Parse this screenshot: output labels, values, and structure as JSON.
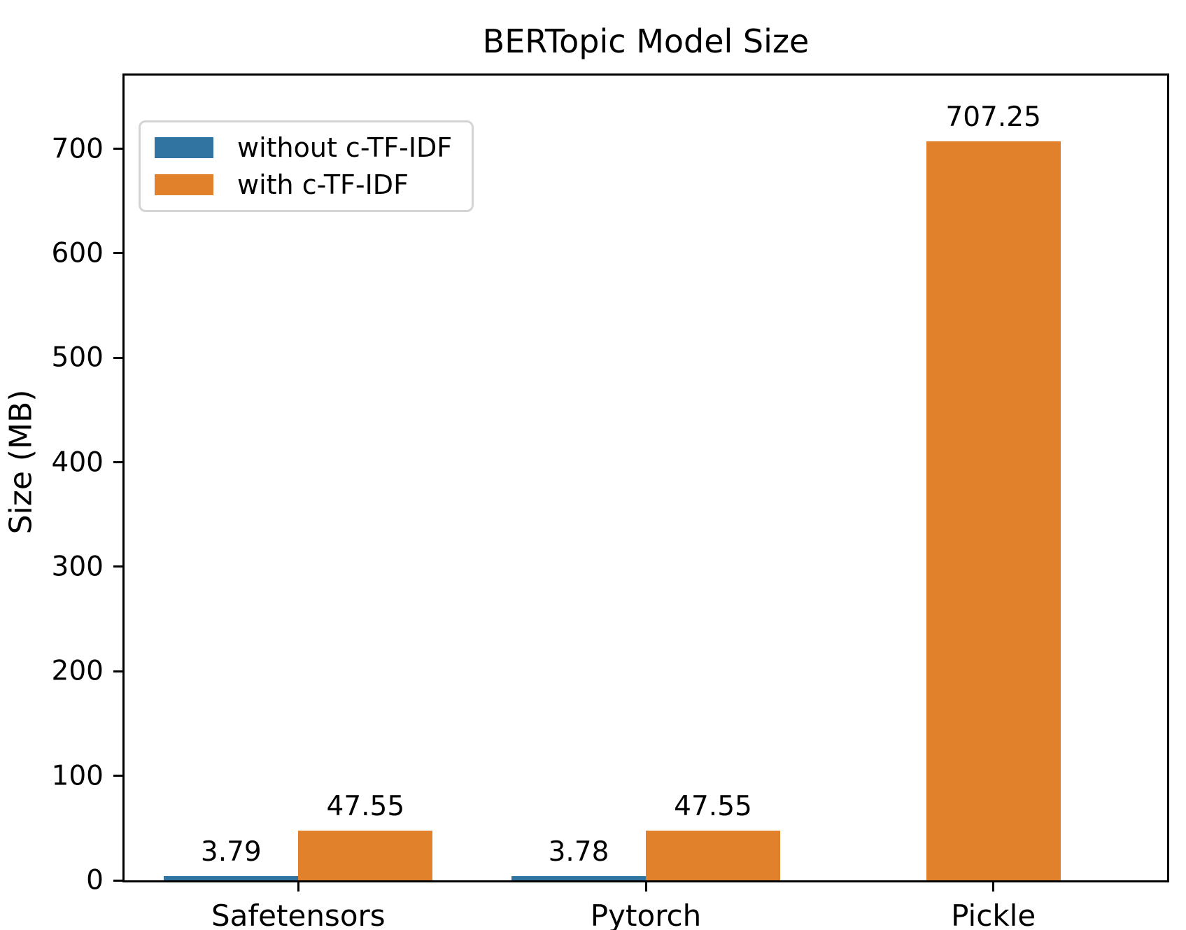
{
  "chart_data": {
    "type": "bar",
    "title": "BERTopic Model Size",
    "xlabel": "",
    "ylabel": "Size (MB)",
    "categories": [
      "Safetensors",
      "Pytorch",
      "Pickle"
    ],
    "series": [
      {
        "name": "without c-TF-IDF",
        "color": "#3274a1",
        "values": [
          3.79,
          3.78,
          null
        ],
        "value_labels": [
          "3.79",
          "3.78",
          null
        ]
      },
      {
        "name": "with c-TF-IDF",
        "color": "#e1812c",
        "values": [
          47.55,
          47.55,
          707.25
        ],
        "value_labels": [
          "47.55",
          "47.55",
          "707.25"
        ]
      }
    ],
    "yticks": [
      0,
      100,
      200,
      300,
      400,
      500,
      600,
      700
    ],
    "ylim": [
      0,
      770
    ],
    "grid": false,
    "legend_position": "upper left",
    "bar_value_labels": true
  },
  "colors": {
    "axis": "#000000",
    "text": "#000000",
    "background": "#ffffff",
    "legend_border": "#d4d4d4"
  }
}
